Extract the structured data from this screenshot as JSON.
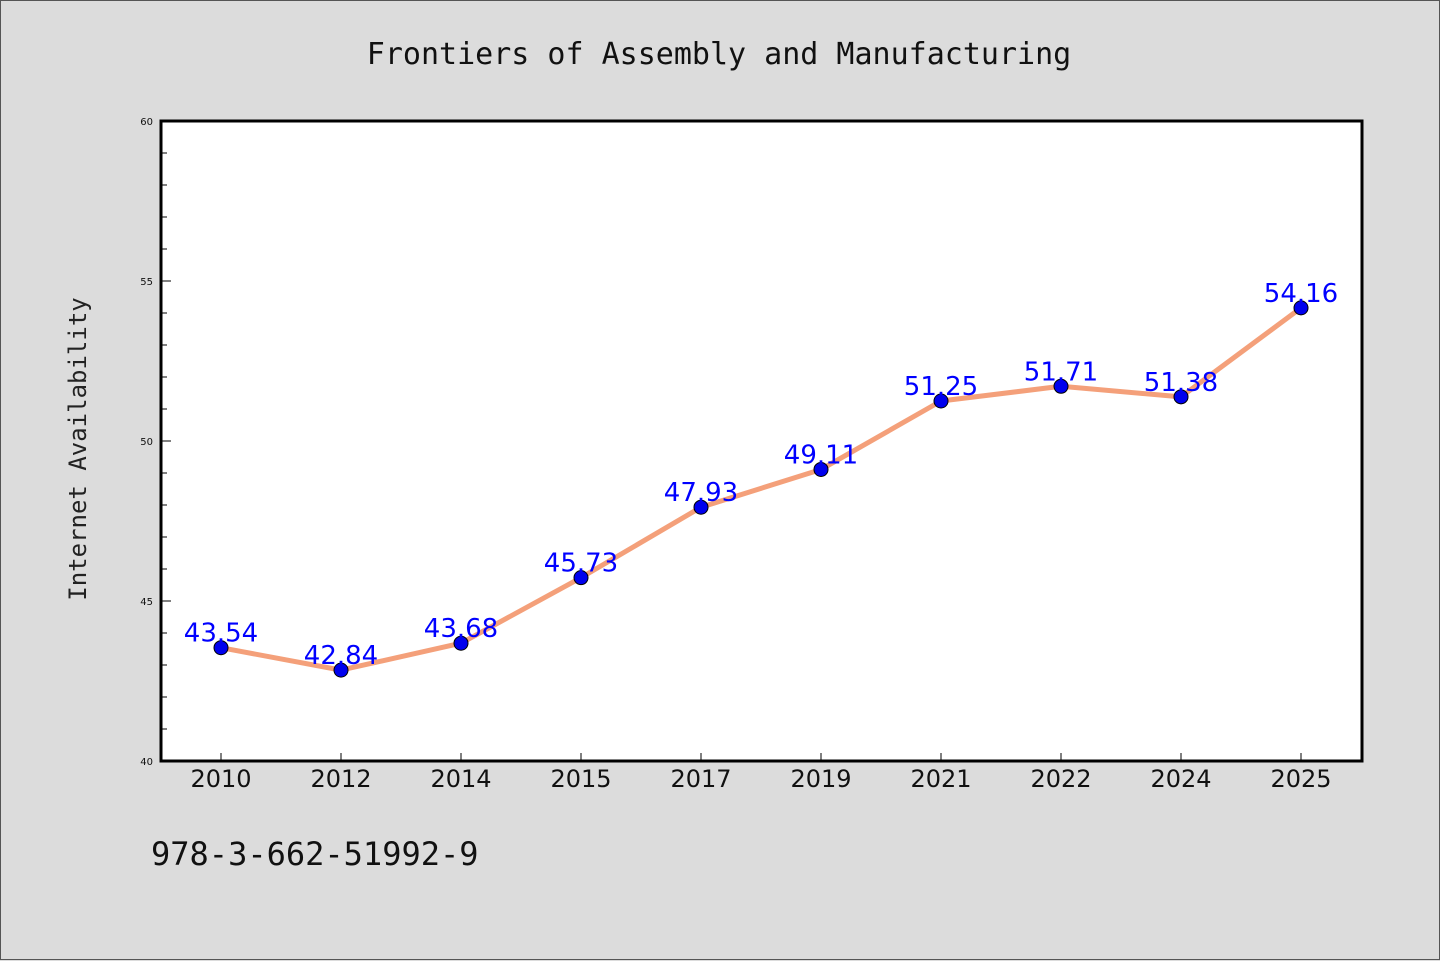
{
  "chart_data": {
    "type": "line",
    "title": "Frontiers of Assembly and Manufacturing",
    "xlabel": "",
    "ylabel": "Internet Availability",
    "categories": [
      "2010",
      "2012",
      "2014",
      "2015",
      "2017",
      "2019",
      "2021",
      "2022",
      "2024",
      "2025"
    ],
    "series": [
      {
        "values": [
          43.54,
          42.84,
          43.68,
          45.73,
          47.93,
          49.11,
          51.25,
          51.71,
          51.38,
          54.16
        ],
        "line_color": "#f4a07a",
        "marker_color": "#0000ee"
      }
    ],
    "data_labels": [
      "43.54",
      "42.84",
      "43.68",
      "45.73",
      "47.93",
      "49.11",
      "51.25",
      "51.71",
      "51.38",
      "54.16"
    ],
    "ylim": [
      40,
      60
    ],
    "yticks": [
      "40",
      "45",
      "50",
      "55",
      "60"
    ],
    "grid": false,
    "legend": "none",
    "label_color": "#0000ff"
  },
  "footnote": "978-3-662-51992-9"
}
